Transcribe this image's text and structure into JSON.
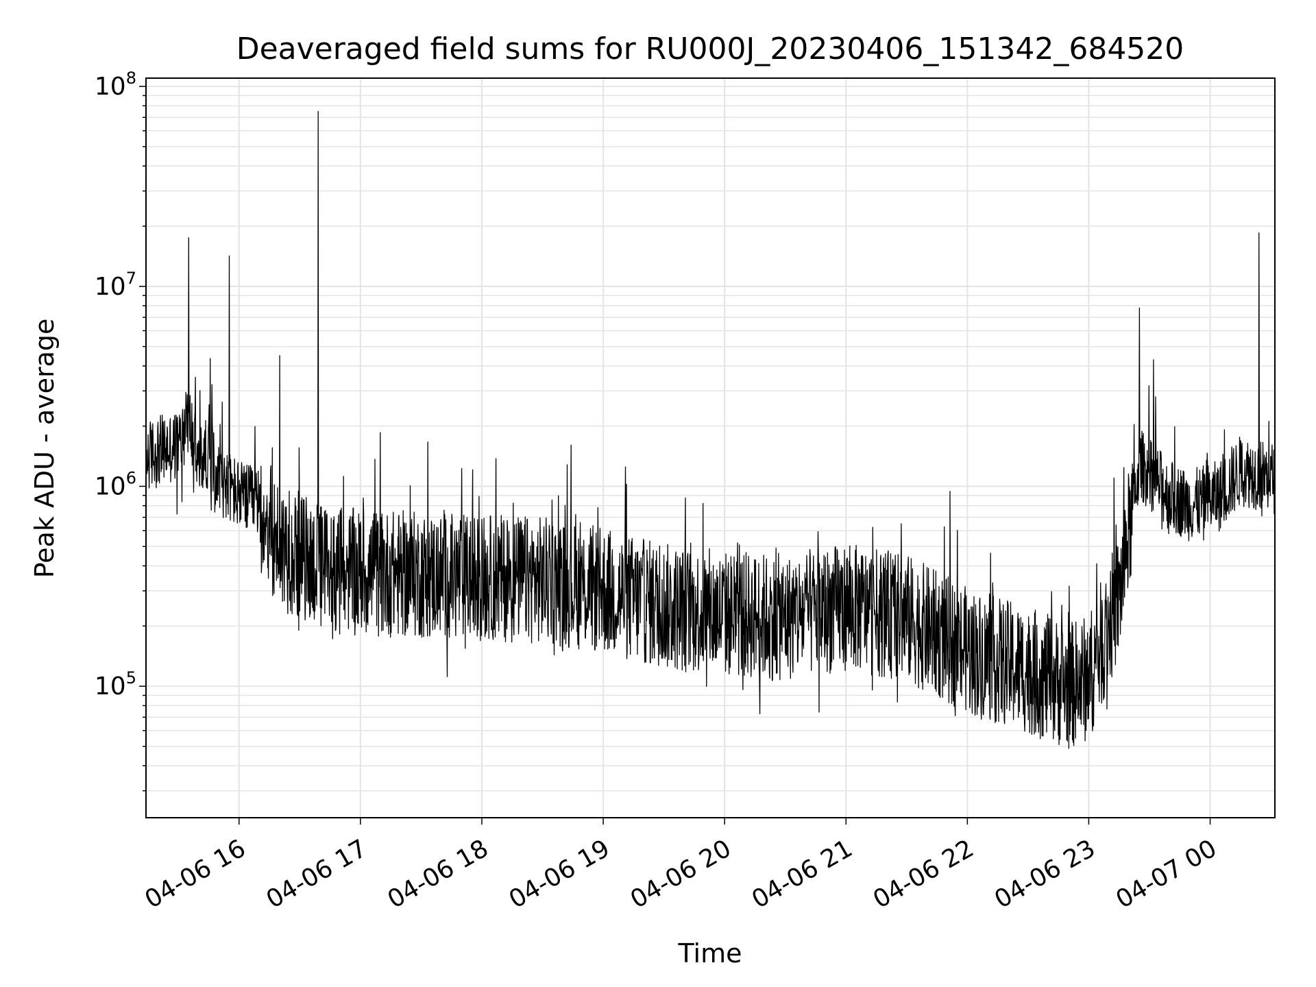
{
  "chart_data": {
    "type": "line",
    "title": "Deaveraged field sums for RU000J_20230406_151342_684520",
    "xlabel": "Time",
    "ylabel": "Peak ADU - average",
    "y_scale": "log",
    "ylim": [
      22000,
      110000000
    ],
    "xlim": [
      "2023-04-06 15:14",
      "2023-04-07 00:32"
    ],
    "grid": true,
    "x_ticks": [
      {
        "t": "2023-04-06 16:00",
        "label": "04-06 16"
      },
      {
        "t": "2023-04-06 17:00",
        "label": "04-06 17"
      },
      {
        "t": "2023-04-06 18:00",
        "label": "04-06 18"
      },
      {
        "t": "2023-04-06 19:00",
        "label": "04-06 19"
      },
      {
        "t": "2023-04-06 20:00",
        "label": "04-06 20"
      },
      {
        "t": "2023-04-06 21:00",
        "label": "04-06 21"
      },
      {
        "t": "2023-04-06 22:00",
        "label": "04-06 22"
      },
      {
        "t": "2023-04-06 23:00",
        "label": "04-06 23"
      },
      {
        "t": "2023-04-07 00:00",
        "label": "04-07 00"
      }
    ],
    "y_ticks": [
      {
        "value": 100000,
        "base": "10",
        "exp": "5"
      },
      {
        "value": 1000000,
        "base": "10",
        "exp": "6"
      },
      {
        "value": 10000000,
        "base": "10",
        "exp": "7"
      },
      {
        "value": 100000000,
        "base": "10",
        "exp": "8"
      }
    ],
    "series": [
      {
        "color": "#000000",
        "points": [
          [
            "2023-04-06 15:14",
            1400000
          ],
          [
            "2023-04-06 15:20",
            1500000
          ],
          [
            "2023-04-06 15:30",
            1600000
          ],
          [
            "2023-04-06 15:35",
            2200000
          ],
          [
            "2023-04-06 15:40",
            1300000
          ],
          [
            "2023-04-06 15:45",
            1500000
          ],
          [
            "2023-04-06 15:50",
            1100000
          ],
          [
            "2023-04-06 16:00",
            900000
          ],
          [
            "2023-04-06 16:10",
            800000
          ],
          [
            "2023-04-06 16:20",
            500000
          ],
          [
            "2023-04-06 16:30",
            450000
          ],
          [
            "2023-04-06 16:40",
            400000
          ],
          [
            "2023-04-06 16:50",
            380000
          ],
          [
            "2023-04-06 17:00",
            370000
          ],
          [
            "2023-04-06 17:30",
            360000
          ],
          [
            "2023-04-06 18:00",
            350000
          ],
          [
            "2023-04-06 18:30",
            340000
          ],
          [
            "2023-04-06 19:00",
            300000
          ],
          [
            "2023-04-06 19:30",
            250000
          ],
          [
            "2023-04-06 20:00",
            230000
          ],
          [
            "2023-04-06 20:30",
            220000
          ],
          [
            "2023-04-06 21:00",
            250000
          ],
          [
            "2023-04-06 21:30",
            220000
          ],
          [
            "2023-04-06 22:00",
            150000
          ],
          [
            "2023-04-06 22:30",
            120000
          ],
          [
            "2023-04-06 22:50",
            100000
          ],
          [
            "2023-04-06 23:00",
            110000
          ],
          [
            "2023-04-06 23:15",
            280000
          ],
          [
            "2023-04-06 23:25",
            1300000
          ],
          [
            "2023-04-06 23:40",
            900000
          ],
          [
            "2023-04-06 23:50",
            800000
          ],
          [
            "2023-04-07 00:05",
            900000
          ],
          [
            "2023-04-07 00:15",
            1200000
          ],
          [
            "2023-04-07 00:32",
            1100000
          ]
        ],
        "spikes": [
          [
            "2023-04-06 15:35",
            17500000
          ],
          [
            "2023-04-06 15:55",
            14200000
          ],
          [
            "2023-04-06 16:20",
            4500000
          ],
          [
            "2023-04-06 16:39",
            75000000
          ],
          [
            "2023-04-06 23:25",
            7800000
          ],
          [
            "2023-04-07 00:24",
            18500000
          ]
        ]
      }
    ]
  }
}
